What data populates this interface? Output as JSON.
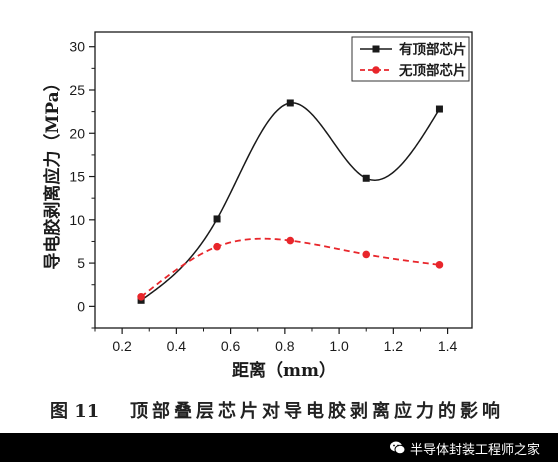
{
  "chart_data": {
    "type": "line",
    "x": [
      0.27,
      0.55,
      0.82,
      1.1,
      1.37
    ],
    "series": [
      {
        "name": "有顶部芯片",
        "values": [
          0.7,
          10.1,
          23.5,
          14.8,
          22.8
        ],
        "color": "#1a1a1a",
        "marker": "square",
        "line": "solid"
      },
      {
        "name": "无顶部芯片",
        "values": [
          1.1,
          6.9,
          7.6,
          6.0,
          4.8
        ],
        "color": "#e8262b",
        "marker": "circle",
        "line": "dashed"
      }
    ],
    "xlabel": "距离（mm）",
    "ylabel": "导电胶剥离应力（MPa）",
    "xticks": [
      "0.2",
      "0.4",
      "0.6",
      "0.8",
      "1.0",
      "1.2",
      "1.4"
    ],
    "yticks": [
      "0",
      "5",
      "10",
      "15",
      "20",
      "25",
      "30"
    ],
    "xlim": [
      0.1,
      1.49
    ],
    "ylim": [
      -2.5,
      31.7
    ],
    "grid": false,
    "legend": "top-right",
    "smooth": true
  },
  "caption": {
    "number": "图 11",
    "text": "顶部叠层芯片对导电胶剥离应力的影响"
  },
  "watermark": {
    "text": "半导体封装工程师之家",
    "icon": "wechat-icon"
  }
}
